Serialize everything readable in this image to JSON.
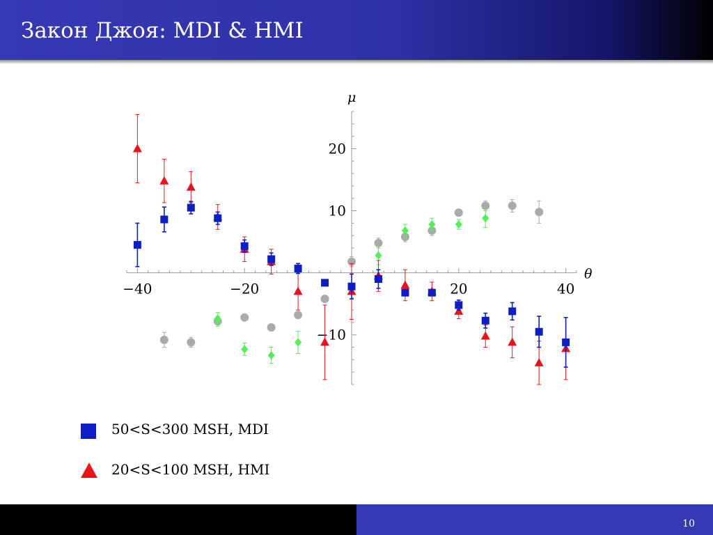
{
  "slide": {
    "title": "Закон Джоя: MDI & HMI",
    "page_number": "10"
  },
  "legend": [
    {
      "label": "50<S<300 MSH, MDI",
      "marker": "square",
      "color": "#0d1fc4"
    },
    {
      "label": "20<S<100 MSH, HMI",
      "marker": "triangle",
      "color": "#e8141a"
    }
  ],
  "chart_data": {
    "type": "scatter",
    "xlabel": "θ",
    "ylabel": "μ",
    "xlim": [
      -42,
      42
    ],
    "ylim": [
      -18,
      26
    ],
    "xticks": [
      -40,
      -20,
      20,
      40
    ],
    "xtick_labels": [
      "−40",
      "−20",
      "20",
      "40"
    ],
    "yticks": [
      -10,
      10,
      20
    ],
    "ytick_labels": [
      "−10",
      "10",
      "20"
    ],
    "grid": false,
    "series": [
      {
        "name": "50<S<300 MSH, MDI",
        "marker": "square",
        "color": "#0d1fc4",
        "points": [
          {
            "x": -40,
            "y": 4.5,
            "err": 3.5
          },
          {
            "x": -35,
            "y": 8.6,
            "err": 2.0
          },
          {
            "x": -30,
            "y": 10.5,
            "err": 1.0
          },
          {
            "x": -25,
            "y": 8.8,
            "err": 1.0
          },
          {
            "x": -20,
            "y": 4.3,
            "err": 1.0
          },
          {
            "x": -15,
            "y": 2.2,
            "err": 1.0
          },
          {
            "x": -10,
            "y": 0.7,
            "err": 0.8
          },
          {
            "x": -5,
            "y": -1.6,
            "err": 0.5
          },
          {
            "x": 0,
            "y": -2.2,
            "err": 2.0
          },
          {
            "x": 5,
            "y": -1.0,
            "err": 1.5
          },
          {
            "x": 10,
            "y": -3.2,
            "err": 0.5
          },
          {
            "x": 15,
            "y": -3.2,
            "err": 0.5
          },
          {
            "x": 20,
            "y": -5.2,
            "err": 0.8
          },
          {
            "x": 25,
            "y": -7.7,
            "err": 1.2
          },
          {
            "x": 30,
            "y": -6.2,
            "err": 1.4
          },
          {
            "x": 35,
            "y": -9.5,
            "err": 2.5
          },
          {
            "x": 40,
            "y": -11.2,
            "err": 4.0
          }
        ]
      },
      {
        "name": "20<S<100 MSH, HMI",
        "marker": "triangle",
        "color": "#e8141a",
        "points": [
          {
            "x": -40,
            "y": 20.0,
            "err": 5.5
          },
          {
            "x": -35,
            "y": 14.8,
            "err": 3.5
          },
          {
            "x": -30,
            "y": 13.8,
            "err": 2.5
          },
          {
            "x": -25,
            "y": 9.0,
            "err": 2.0
          },
          {
            "x": -20,
            "y": 3.8,
            "err": 2.0
          },
          {
            "x": -15,
            "y": 1.8,
            "err": 2.0
          },
          {
            "x": -10,
            "y": -3.0,
            "err": 3.0
          },
          {
            "x": -5,
            "y": -11.2,
            "err": 6.0
          },
          {
            "x": 0,
            "y": -3.0,
            "err": 4.5
          },
          {
            "x": 5,
            "y": -0.5,
            "err": 2.5
          },
          {
            "x": 10,
            "y": -2.0,
            "err": 2.5
          },
          {
            "x": 15,
            "y": -3.0,
            "err": 1.5
          },
          {
            "x": 20,
            "y": -6.2,
            "err": 1.2
          },
          {
            "x": 25,
            "y": -10.2,
            "err": 1.8
          },
          {
            "x": 30,
            "y": -11.2,
            "err": 2.5
          },
          {
            "x": 35,
            "y": -14.5,
            "err": 3.5
          },
          {
            "x": 40,
            "y": -12.2,
            "err": 5.0
          }
        ]
      },
      {
        "marker": "diamond",
        "color": "#55ee55",
        "points": [
          {
            "x": -25,
            "y": -7.4,
            "err": 1.0
          },
          {
            "x": -20,
            "y": -12.3,
            "err": 1.0
          },
          {
            "x": -15,
            "y": -13.3,
            "err": 1.3
          },
          {
            "x": -10,
            "y": -11.2,
            "err": 1.8
          },
          {
            "x": 5,
            "y": 2.8,
            "err": 1.5
          },
          {
            "x": 10,
            "y": 6.8,
            "err": 1.0
          },
          {
            "x": 15,
            "y": 7.8,
            "err": 1.0
          },
          {
            "x": 20,
            "y": 7.8,
            "err": 0.8
          },
          {
            "x": 25,
            "y": 8.8,
            "err": 1.5
          }
        ]
      },
      {
        "marker": "circle",
        "color": "#aaaaaa",
        "points": [
          {
            "x": -35,
            "y": -10.8,
            "err": 1.2
          },
          {
            "x": -30,
            "y": -11.2,
            "err": 0.8
          },
          {
            "x": -25,
            "y": -7.8,
            "err": 0.8
          },
          {
            "x": -20,
            "y": -7.2,
            "err": 0.5
          },
          {
            "x": -15,
            "y": -8.8,
            "err": 0.5
          },
          {
            "x": -10,
            "y": -6.8,
            "err": 0.5
          },
          {
            "x": -5,
            "y": -4.2,
            "err": 0.5
          },
          {
            "x": 0,
            "y": 1.8,
            "err": 0.8
          },
          {
            "x": 5,
            "y": 4.8,
            "err": 0.8
          },
          {
            "x": 10,
            "y": 5.8,
            "err": 0.8
          },
          {
            "x": 15,
            "y": 6.8,
            "err": 0.8
          },
          {
            "x": 20,
            "y": 9.7,
            "err": 0.5
          },
          {
            "x": 25,
            "y": 10.8,
            "err": 0.8
          },
          {
            "x": 30,
            "y": 10.8,
            "err": 1.0
          },
          {
            "x": 35,
            "y": 9.8,
            "err": 1.8
          }
        ]
      }
    ]
  }
}
